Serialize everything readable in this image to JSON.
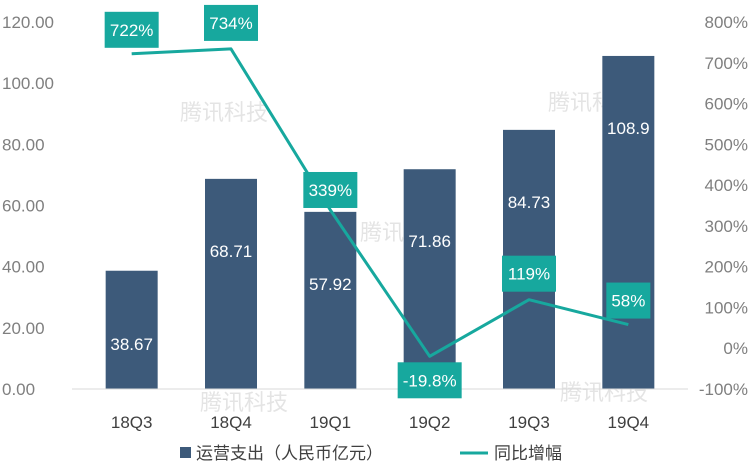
{
  "chart_data": {
    "type": "bar",
    "categories": [
      "18Q3",
      "18Q4",
      "19Q1",
      "19Q2",
      "19Q3",
      "19Q4"
    ],
    "series": [
      {
        "name": "运营支出（人民币亿元）",
        "type": "bar",
        "axis": "left",
        "color": "#3d5a7a",
        "values": [
          38.67,
          68.71,
          57.92,
          71.86,
          84.73,
          108.9
        ],
        "labels": [
          "38.67",
          "68.71",
          "57.92",
          "71.86",
          "84.73",
          "108.9"
        ]
      },
      {
        "name": "同比增幅",
        "type": "line",
        "axis": "right",
        "color": "#17a89e",
        "values": [
          722,
          734,
          339,
          -19.8,
          119,
          58
        ],
        "labels": [
          "722%",
          "734%",
          "339%",
          "-19.8%",
          "119%",
          "58%"
        ]
      }
    ],
    "y_left": {
      "lim": [
        0,
        120
      ],
      "ticks": [
        "0.00",
        "20.00",
        "40.00",
        "60.00",
        "80.00",
        "100.00",
        "120.00"
      ]
    },
    "y_right": {
      "lim": [
        -100,
        800
      ],
      "ticks": [
        "-100%",
        "0%",
        "100%",
        "200%",
        "300%",
        "400%",
        "500%",
        "600%",
        "700%",
        "800%"
      ]
    },
    "grid": false,
    "legend_position": "bottom",
    "watermark": "腾讯科技"
  }
}
